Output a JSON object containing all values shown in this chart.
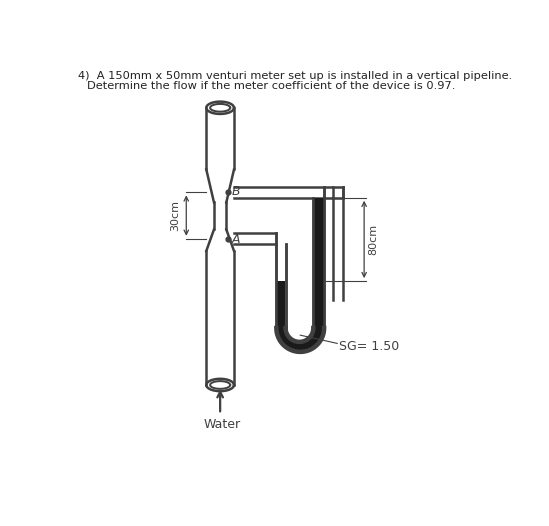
{
  "title_line1": "4)  A 150mm x 50mm venturi meter set up is installed in a vertical pipeline.",
  "title_line2": "Determine the flow if the meter coefficient of the device is 0.97.",
  "label_A": "A",
  "label_B": "B",
  "label_30cm": "30cm",
  "label_80cm": "80cm",
  "label_water": "Water",
  "label_sg": "SG= 1.50",
  "bg_color": "#ffffff",
  "line_color": "#404040",
  "fill_dark": "#1a1a1a"
}
